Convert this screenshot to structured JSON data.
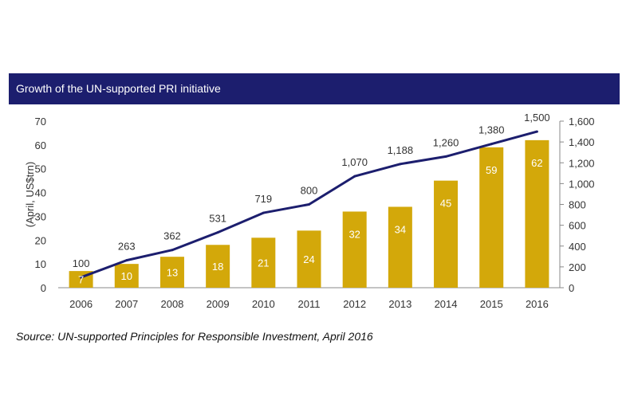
{
  "title": "Growth of the UN-supported PRI initiative",
  "source": "Source: UN-supported Principles for Responsible Investment, April 2016",
  "colors": {
    "bar": "#d3a80a",
    "line": "#1c1e6e",
    "header": "#1c1e6e"
  },
  "chart_data": {
    "type": "bar",
    "categories": [
      "2006",
      "2007",
      "2008",
      "2009",
      "2010",
      "2011",
      "2012",
      "2013",
      "2014",
      "2015",
      "2016"
    ],
    "series": [
      {
        "type": "bar",
        "axis": "left",
        "values": [
          7,
          10,
          13,
          18,
          21,
          24,
          32,
          34,
          45,
          59,
          62
        ]
      },
      {
        "type": "line",
        "axis": "right",
        "values": [
          100,
          263,
          362,
          531,
          719,
          800,
          1070,
          1188,
          1260,
          1380,
          1500
        ]
      }
    ],
    "series_labels": [
      "100",
      "263",
      "362",
      "531",
      "719",
      "800",
      "1,070",
      "1,188",
      "1,260",
      "1,380",
      "1,500"
    ],
    "ylabel_left": "(April, US$trn)",
    "ylim_left": [
      0,
      70
    ],
    "yticks_left": [
      "0",
      "10",
      "20",
      "30",
      "40",
      "50",
      "60",
      "70"
    ],
    "ylim_right": [
      0,
      1600
    ],
    "yticks_right": [
      "0",
      "200",
      "400",
      "600",
      "800",
      "1,000",
      "1,200",
      "1,400",
      "1,600"
    ],
    "grid": false
  }
}
